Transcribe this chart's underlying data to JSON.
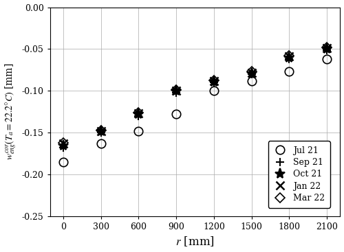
{
  "r": [
    0,
    300,
    600,
    900,
    1200,
    1500,
    1800,
    2100
  ],
  "Jul21": [
    -0.185,
    -0.163,
    -0.148,
    -0.128,
    -0.1,
    -0.088,
    -0.077,
    -0.062
  ],
  "Sep21": [
    -0.168,
    -0.15,
    -0.13,
    -0.102,
    -0.09,
    -0.08,
    -0.062,
    -0.051
  ],
  "Oct21": [
    -0.165,
    -0.148,
    -0.128,
    -0.1,
    -0.089,
    -0.079,
    -0.06,
    -0.05
  ],
  "Jan22": [
    -0.163,
    -0.148,
    -0.127,
    -0.1,
    -0.088,
    -0.078,
    -0.059,
    -0.049
  ],
  "Mar22": [
    -0.162,
    -0.147,
    -0.126,
    -0.099,
    -0.087,
    -0.077,
    -0.058,
    -0.048
  ],
  "xlabel": "$r$ [mm]",
  "ylabel": "$w^{cor}_{eng}(T_a = 22.2\\degree C)$ [mm]",
  "xlim": [
    -105,
    2205
  ],
  "ylim": [
    -0.25,
    0.0
  ],
  "xticks": [
    0,
    300,
    600,
    900,
    1200,
    1500,
    1800,
    2100
  ],
  "yticks": [
    0.0,
    -0.05,
    -0.1,
    -0.15,
    -0.2,
    -0.25
  ],
  "legend_labels": [
    "Jul 21",
    "Sep 21",
    "Oct 21",
    "Jan 22",
    "Mar 22"
  ],
  "markers": [
    "o",
    "+",
    "*",
    "x",
    "D"
  ],
  "markersizes": [
    9,
    9,
    11,
    9,
    7
  ],
  "markeredgewidths": [
    1.2,
    1.5,
    1.5,
    1.8,
    1.2
  ],
  "background_color": "#ffffff",
  "grid_color": "#aaaaaa"
}
